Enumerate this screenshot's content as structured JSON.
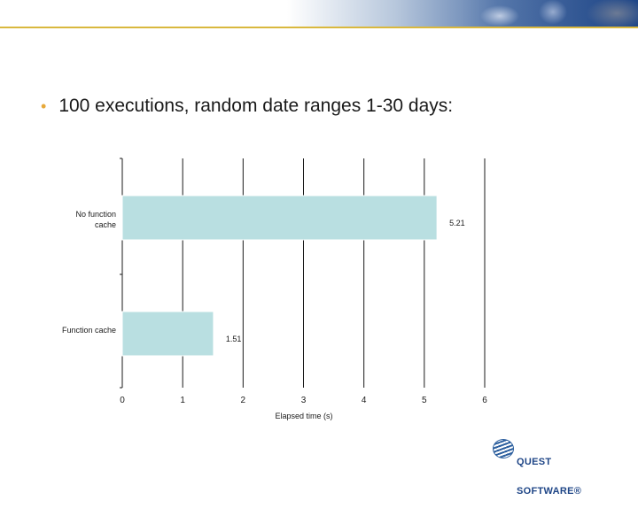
{
  "slide": {
    "bullet": "100 executions, random date ranges 1-30 days:"
  },
  "logo": {
    "line1": "QUEST",
    "line2": "SOFTWARE®"
  },
  "colors": {
    "bar": "#b9dfe1",
    "bar_stroke": "#ffffff",
    "grid": "#1a1a1a",
    "bullet": "#e7a93a",
    "banner_rule": "#d9b83e"
  },
  "chart_data": {
    "type": "bar",
    "orientation": "horizontal",
    "categories": [
      "No function cache",
      "Function cache"
    ],
    "category_labels": [
      [
        "No function",
        "cache"
      ],
      [
        "Function cache"
      ]
    ],
    "values": [
      5.21,
      1.51
    ],
    "value_labels": [
      "5.21",
      "1.51"
    ],
    "xlabel": "Elapsed time (s)",
    "ylabel": "",
    "xlim": [
      0,
      6
    ],
    "xticks": [
      0,
      1,
      2,
      3,
      4,
      5,
      6
    ],
    "grid": "vertical",
    "legend": "none"
  }
}
